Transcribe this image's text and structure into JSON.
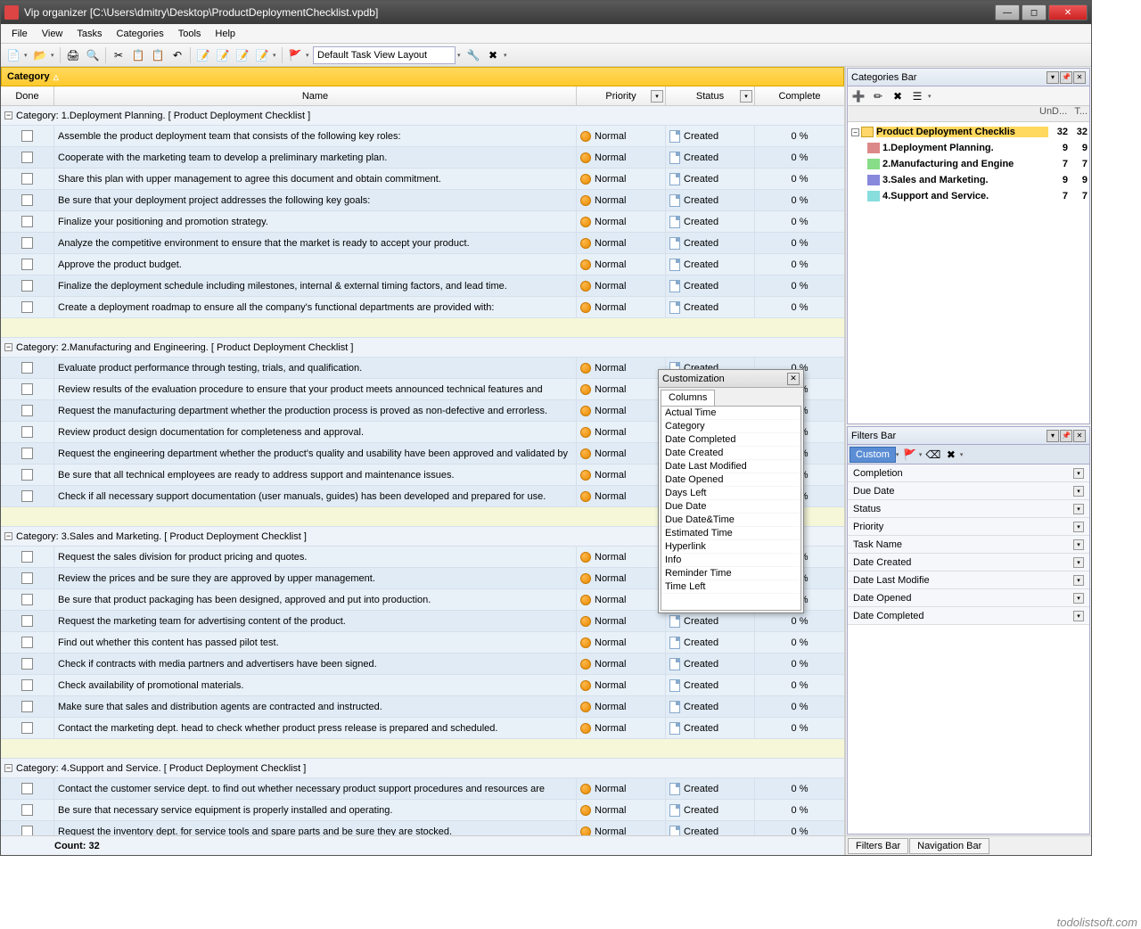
{
  "title": "Vip organizer [C:\\Users\\dmitry\\Desktop\\ProductDeploymentChecklist.vpdb]",
  "menu": [
    "File",
    "View",
    "Tasks",
    "Categories",
    "Tools",
    "Help"
  ],
  "layout_selector": "Default Task View Layout",
  "group_by": "Category",
  "columns": {
    "done": "Done",
    "name": "Name",
    "prio": "Priority",
    "stat": "Status",
    "comp": "Complete"
  },
  "priority_label": "Normal",
  "status_label": "Created",
  "complete_label": "0 %",
  "categories": [
    {
      "title": "Category: 1.Deployment Planning.    [ Product Deployment Checklist ]",
      "tasks": [
        "Assemble the product deployment team that consists of the following key roles:",
        "Cooperate with the marketing team to develop a preliminary marketing plan.",
        "Share this plan with upper management to agree this document and obtain commitment.",
        "Be sure that your deployment project addresses the following key goals:",
        "Finalize your positioning and promotion strategy.",
        "Analyze the competitive environment to ensure that the market is ready to accept your product.",
        "Approve the product budget.",
        "Finalize the deployment schedule including milestones, internal & external timing factors, and lead time.",
        "Create a deployment roadmap to ensure all the company's functional departments are provided with:"
      ]
    },
    {
      "title": "Category: 2.Manufacturing and Engineering.    [ Product Deployment Checklist ]",
      "tasks": [
        "Evaluate product performance through testing, trials, and qualification.",
        "Review results of the evaluation procedure to ensure that your product meets announced technical features and",
        "Request the manufacturing department whether the production process is proved as non-defective and errorless.",
        "Review product design documentation for completeness and approval.",
        "Request the engineering department whether the product's quality and usability have been approved and validated by",
        "Be sure that all technical employees are ready to address support and maintenance issues.",
        "Check if all necessary support documentation (user manuals, guides) has been developed and prepared for use."
      ]
    },
    {
      "title": "Category: 3.Sales and Marketing.    [ Product Deployment Checklist ]",
      "tasks": [
        "Request the sales division for product pricing and quotes.",
        "Review the prices and be sure they are approved by upper management.",
        "Be sure that product packaging has been designed, approved and put into production.",
        "Request the marketing team for advertising content of the product.",
        "Find out whether this content has passed pilot test.",
        "Check if contracts with media partners and advertisers have been signed.",
        "Check availability of promotional materials.",
        "Make sure that sales and distribution agents are contracted and instructed.",
        "Contact the marketing dept. head to check whether product press release is prepared and scheduled."
      ]
    },
    {
      "title": "Category: 4.Support and Service.    [ Product Deployment Checklist ]",
      "tasks": [
        "Contact the customer service dept. to find out whether necessary product support procedures and resources are",
        "Be sure that necessary service equipment is properly installed and operating.",
        "Request the inventory dept. for service tools and spare parts and be sure they are stocked."
      ]
    }
  ],
  "footer_count": "Count:  32",
  "cat_panel": {
    "title": "Categories Bar",
    "hdr1": "UnD...",
    "hdr2": "T...",
    "root": {
      "label": "Product Deployment Checklis",
      "n1": "32",
      "n2": "32"
    },
    "children": [
      {
        "label": "1.Deployment Planning.",
        "n1": "9",
        "n2": "9"
      },
      {
        "label": "2.Manufacturing and Engine",
        "n1": "7",
        "n2": "7"
      },
      {
        "label": "3.Sales and Marketing.",
        "n1": "9",
        "n2": "9"
      },
      {
        "label": "4.Support and Service.",
        "n1": "7",
        "n2": "7"
      }
    ]
  },
  "filter_panel": {
    "title": "Filters Bar",
    "custom": "Custom",
    "rows": [
      "Completion",
      "Due Date",
      "Status",
      "Priority",
      "Task Name",
      "Date Created",
      "Date Last Modifie",
      "Date Opened",
      "Date Completed"
    ]
  },
  "bottom_tabs": [
    "Filters Bar",
    "Navigation Bar"
  ],
  "popup": {
    "title": "Customization",
    "tab": "Columns",
    "items": [
      "Actual Time",
      "Category",
      "Date Completed",
      "Date Created",
      "Date Last Modified",
      "Date Opened",
      "Days Left",
      "Due Date",
      "Due Date&Time",
      "Estimated Time",
      "Hyperlink",
      "Info",
      "Reminder Time",
      "Time Left"
    ]
  },
  "watermark": "todolistsoft.com"
}
